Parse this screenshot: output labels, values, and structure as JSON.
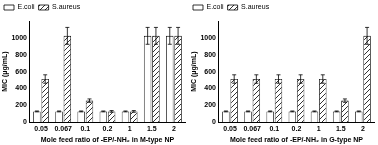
{
  "chart_data": [
    {
      "type": "bar",
      "x_label": "Mole feed ratio of -EP/-NH₂ in M-type NP",
      "y_label": "MIC (μg/mL)",
      "categories": [
        "0.05",
        "0.067",
        "0.1",
        "0.2",
        "1",
        "1.5",
        "2"
      ],
      "series": [
        {
          "name": "E.coli",
          "color": "#ffffff",
          "values": [
            128,
            128,
            128,
            128,
            128,
            1024,
            1024
          ],
          "errors": [
            5,
            5,
            5,
            5,
            5,
            100,
            100
          ]
        },
        {
          "name": "S.aureus",
          "color": "#000000",
          "line_style": "hatched",
          "values": [
            512,
            1024,
            256,
            128,
            128,
            1024,
            1024
          ],
          "errors": [
            50,
            100,
            20,
            10,
            10,
            100,
            100
          ]
        }
      ],
      "ylim": [
        0,
        1200
      ],
      "yticks": [
        0,
        200,
        400,
        600,
        800,
        1000
      ],
      "grid": false,
      "legend": "upper left"
    },
    {
      "type": "bar",
      "x_label": "Mole feed ratio of -EP/-NH₂ in G-type NP",
      "y_label": "MIC (μg/mL)",
      "categories": [
        "0.05",
        "0.067",
        "0.1",
        "0.2",
        "1",
        "1.5",
        "2"
      ],
      "series": [
        {
          "name": "E.coli",
          "color": "#ffffff",
          "values": [
            128,
            128,
            128,
            128,
            128,
            128,
            128
          ],
          "errors": [
            5,
            5,
            5,
            5,
            5,
            5,
            5
          ]
        },
        {
          "name": "S.aureus",
          "color": "#000000",
          "line_style": "hatched",
          "values": [
            512,
            512,
            512,
            512,
            512,
            256,
            1024
          ],
          "errors": [
            50,
            50,
            50,
            50,
            50,
            20,
            100
          ]
        }
      ],
      "ylim": [
        0,
        1200
      ],
      "yticks": [
        0,
        200,
        400,
        600,
        800,
        1000
      ],
      "grid": false,
      "legend": "upper left"
    }
  ]
}
